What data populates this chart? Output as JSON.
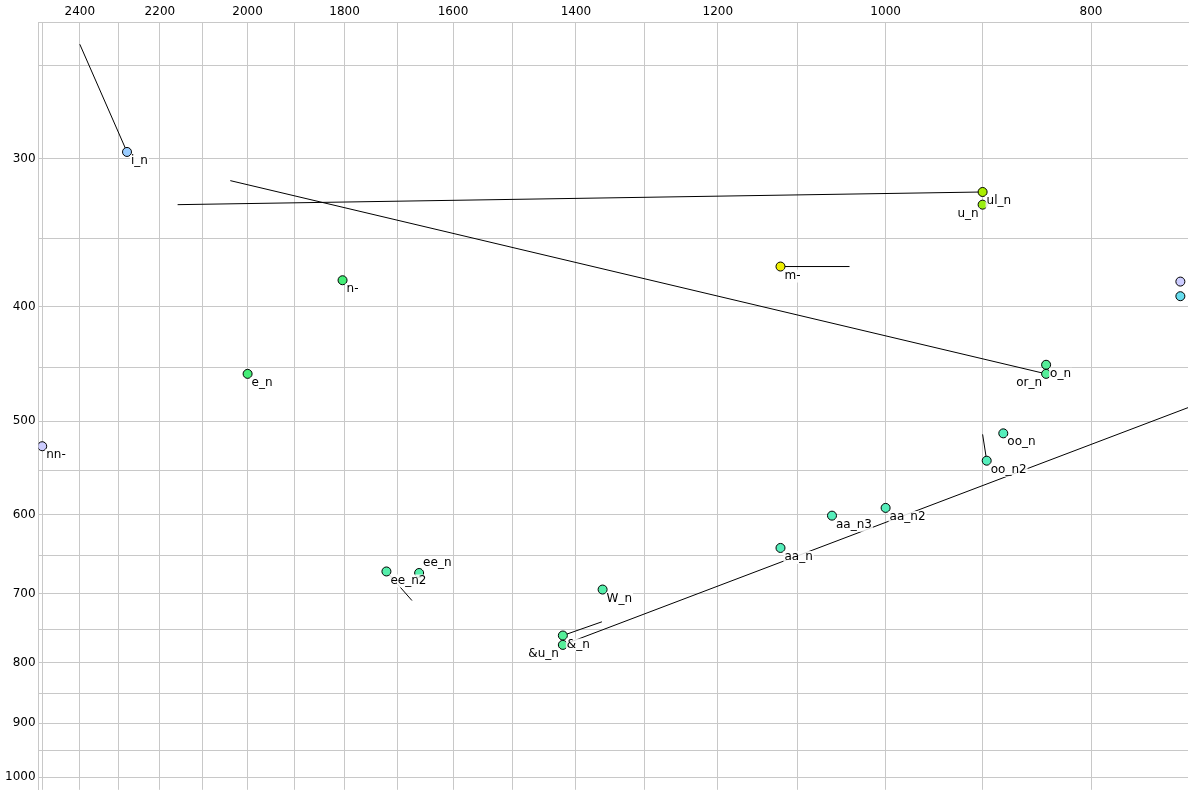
{
  "chart_data": {
    "type": "scatter",
    "log": "xy",
    "grid": true,
    "marker": "circle",
    "xlim": [
      2510,
      720
    ],
    "ylim": [
      1025,
      230
    ],
    "xticks": [
      {
        "value": 2500,
        "label": null
      },
      2400,
      {
        "value": 2300,
        "label": null
      },
      2200,
      {
        "value": 2100,
        "label": null
      },
      2000,
      {
        "value": 1900,
        "label": null
      },
      1800,
      {
        "value": 1700,
        "label": null
      },
      1600,
      {
        "value": 1500,
        "label": null
      },
      1400,
      {
        "value": 1300,
        "label": null
      },
      1200,
      {
        "value": 1100,
        "label": null
      },
      1000,
      {
        "value": 900,
        "label": null
      },
      800
    ],
    "yticks": [
      {
        "value": 250,
        "label": null
      },
      300,
      {
        "value": 350,
        "label": null
      },
      400,
      {
        "value": 450,
        "label": null
      },
      500,
      {
        "value": 550,
        "label": null
      },
      600,
      {
        "value": 650,
        "label": null
      },
      700,
      {
        "value": 750,
        "label": null
      },
      800,
      {
        "value": 850,
        "label": null
      },
      900,
      {
        "value": 950,
        "label": null
      },
      1000
    ],
    "series": [
      {
        "type": "line",
        "marker": "none",
        "color": "#000000",
        "x": [
          2400,
          2280
        ],
        "values": [
          240,
          296
        ]
      },
      {
        "type": "line",
        "marker": "none",
        "color": "#000000",
        "x": [
          1720,
          1673
        ],
        "values": [
          670,
          709
        ]
      },
      {
        "type": "line",
        "marker": "none",
        "color": "#000000",
        "x": [
          1420,
          1361
        ],
        "values": [
          759,
          739
        ]
      },
      {
        "type": "line",
        "marker": "none",
        "color": "#000000",
        "x": [
          1420,
          720
        ],
        "values": [
          773,
          487
        ]
      },
      {
        "type": "line",
        "marker": "none",
        "color": "#000000",
        "x": [
          896,
          900
        ],
        "values": [
          540,
          513
        ]
      },
      {
        "type": "line",
        "marker": "none",
        "color": "#000000",
        "x": [
          840,
          2038
        ],
        "values": [
          456,
          313
        ]
      },
      {
        "type": "line",
        "marker": "none",
        "color": "#000000",
        "x": [
          900,
          2158
        ],
        "values": [
          320,
          328
        ]
      },
      {
        "type": "line",
        "marker": "none",
        "color": "#000000",
        "x": [
          1121,
          1040
        ],
        "values": [
          370,
          370
        ]
      },
      {
        "type": "scatter",
        "x": [
          2280,
          1804,
          2000,
          2500,
          1720,
          1660,
          1360,
          1420,
          1420,
          1121,
          1060,
          1000,
          896,
          880,
          840,
          840,
          900,
          900,
          1121,
          726,
          726
        ],
        "values": [
          296,
          380,
          456,
          525,
          670,
          672,
          694,
          759,
          773,
          640,
          601,
          592,
          540,
          512,
          448,
          456,
          320,
          328,
          370,
          381,
          392
        ],
        "colors": [
          "#99ccff",
          "#44ee77",
          "#44ee77",
          "#ccccff",
          "#55eeaa",
          "#55eeaa",
          "#55eeaa",
          "#55ee99",
          "#55ee99",
          "#55eebb",
          "#55eebb",
          "#55eebb",
          "#55eebb",
          "#55eebb",
          "#55ee99",
          "#55ee99",
          "#aaee00",
          "#99ee11",
          "#eeee00",
          "#ccccff",
          "#66ddee"
        ]
      }
    ],
    "annotations": [
      {
        "text": "i_n",
        "x": 2280,
        "y": 296
      },
      {
        "text": "n-",
        "x": 1804,
        "y": 380
      },
      {
        "text": "e_n",
        "x": 2000,
        "y": 456
      },
      {
        "text": "nn-",
        "x": 2500,
        "y": 525
      },
      {
        "text": "ee_n2",
        "x": 1720,
        "y": 670
      },
      {
        "text": "ee_n",
        "x": 1660,
        "y": 672
      },
      {
        "text": "W_n",
        "x": 1360,
        "y": 694
      },
      {
        "text": "&_n",
        "x": 1420,
        "y": 759
      },
      {
        "text": "&u_n",
        "x": 1420,
        "y": 773
      },
      {
        "text": "aa_n",
        "x": 1121,
        "y": 640
      },
      {
        "text": "aa_n3",
        "x": 1060,
        "y": 601
      },
      {
        "text": "aa_n2",
        "x": 1000,
        "y": 592
      },
      {
        "text": "oo_n2",
        "x": 896,
        "y": 540
      },
      {
        "text": "oo_n",
        "x": 880,
        "y": 512
      },
      {
        "text": "o_n",
        "x": 840,
        "y": 448
      },
      {
        "text": "or_n",
        "x": 840,
        "y": 456
      },
      {
        "text": "ul_n",
        "x": 900,
        "y": 320
      },
      {
        "text": "u_n",
        "x": 900,
        "y": 328
      },
      {
        "text": "m-",
        "x": 1121,
        "y": 370
      }
    ]
  }
}
